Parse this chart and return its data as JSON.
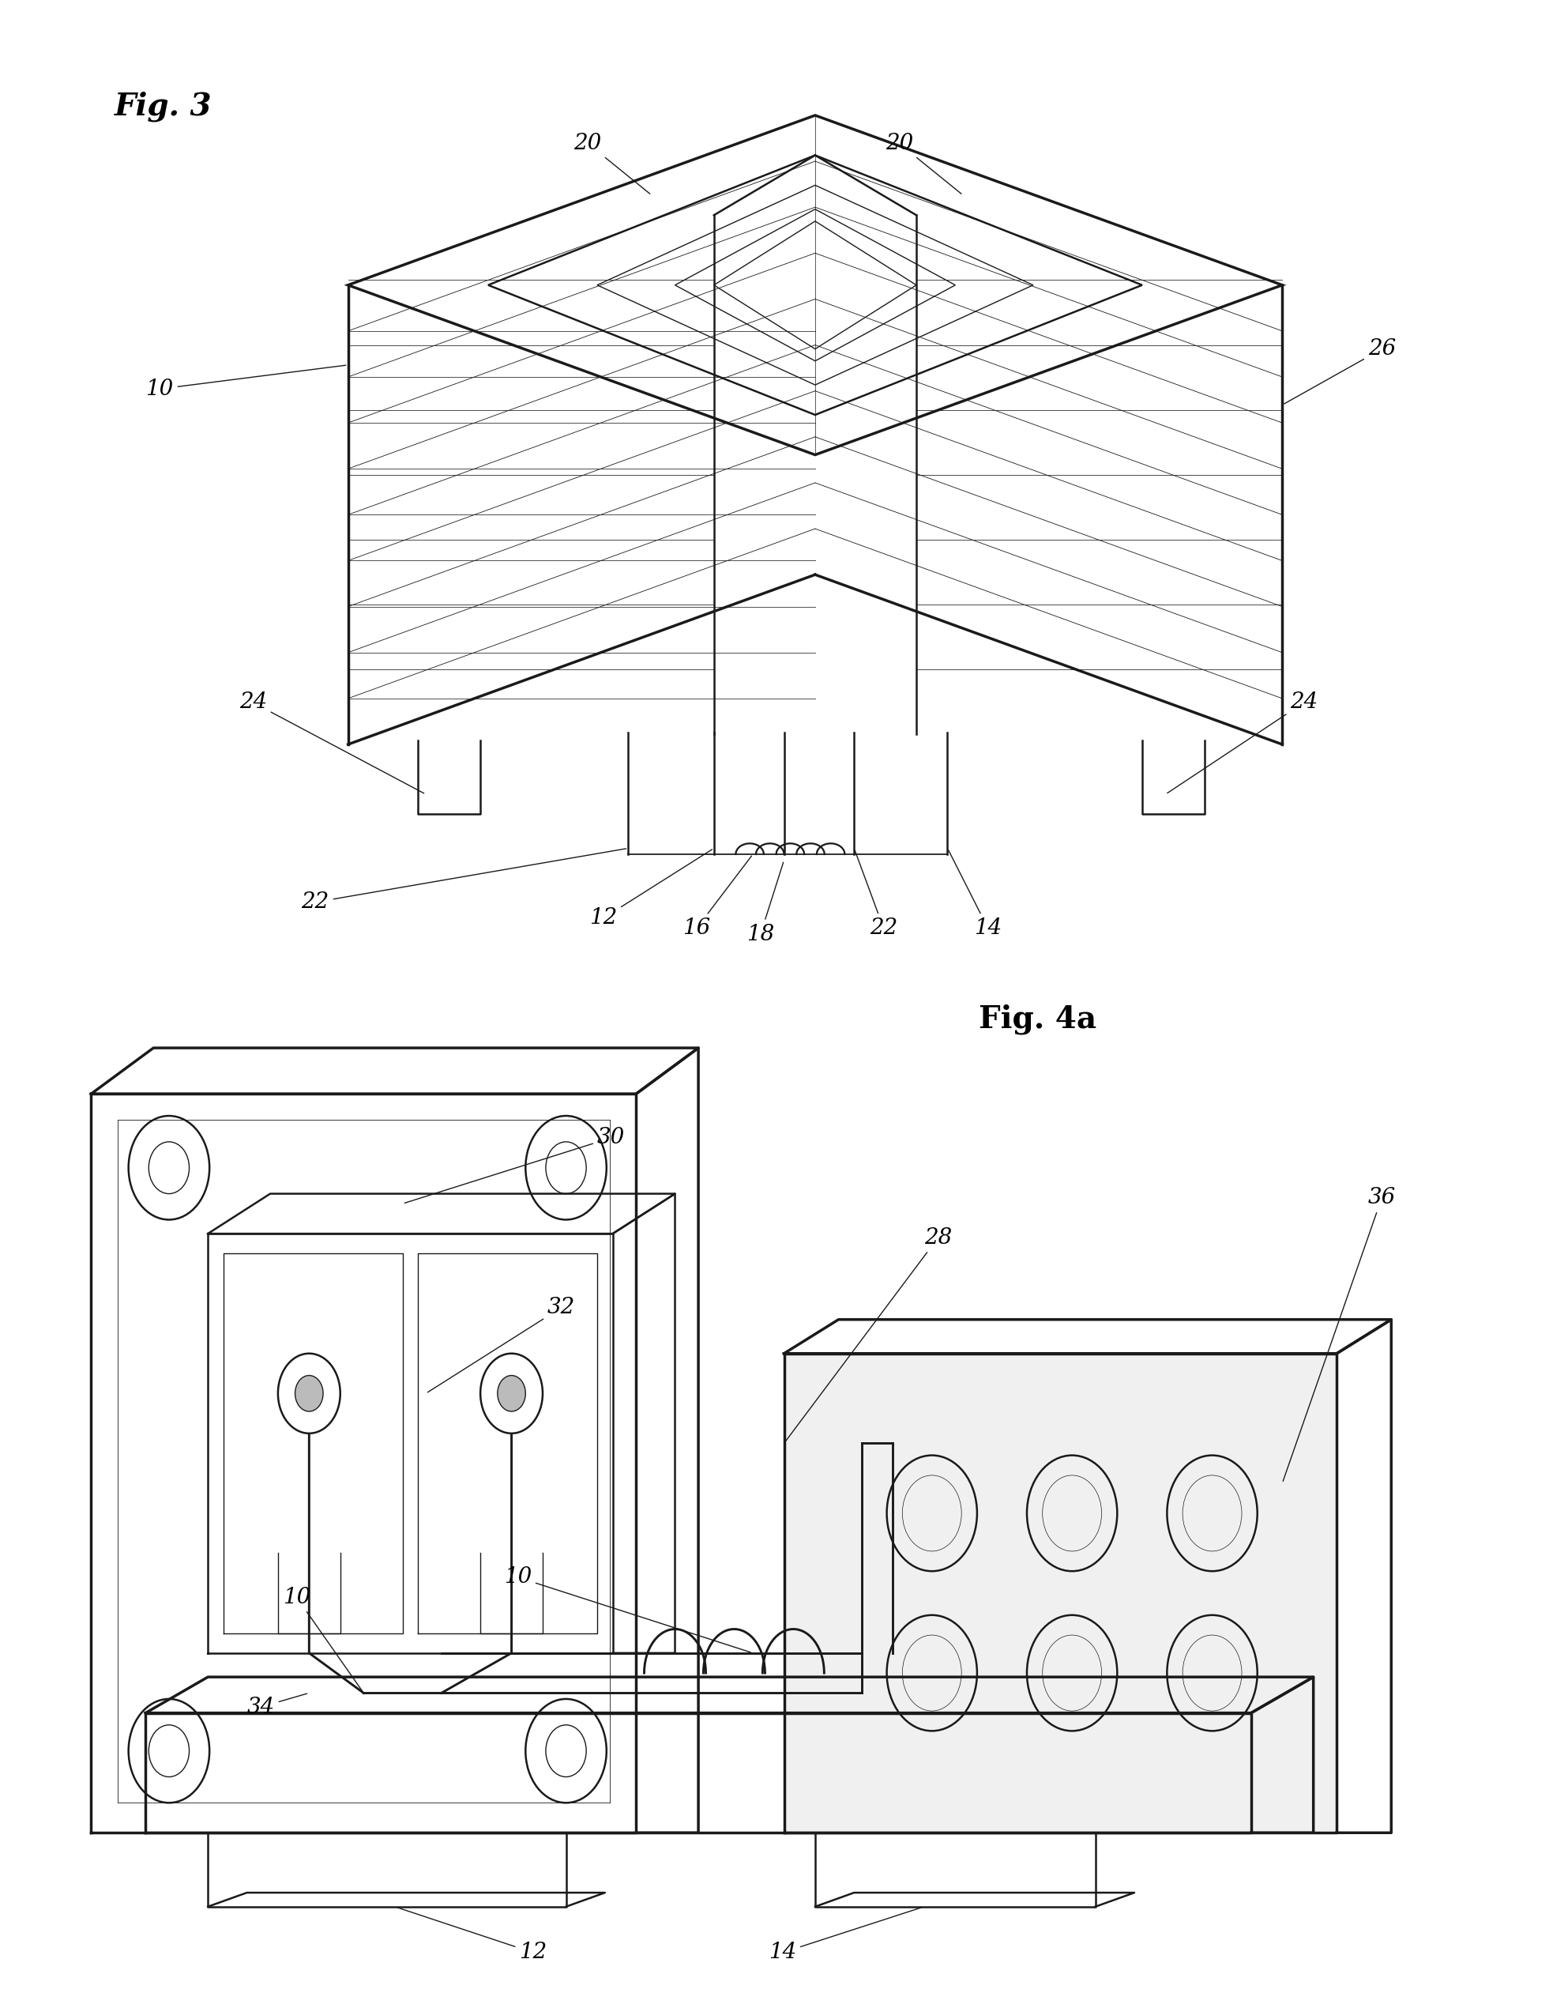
{
  "background_color": "#ffffff",
  "fig_width": 19.85,
  "fig_height": 25.41,
  "fig3_label": "Fig. 3",
  "fig4a_label": "Fig. 4a",
  "line_color": "#1a1a1a"
}
